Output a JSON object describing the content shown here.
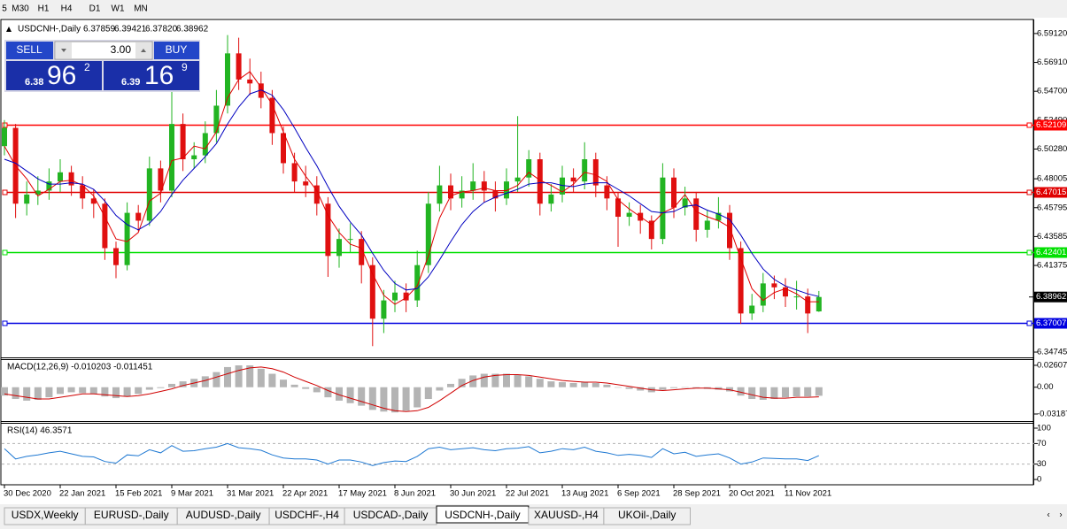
{
  "toolbar": [
    "5",
    "M30",
    "H1",
    "H4",
    "D1",
    "W1",
    "MN"
  ],
  "trade_panel": {
    "sell": "SELL",
    "buy": "BUY",
    "lots": "3.00",
    "sell_price": {
      "big": "6.38",
      "pips": "96",
      "point": "2"
    },
    "buy_price": {
      "big": "6.39",
      "pips": "16",
      "point": "9"
    }
  },
  "tabs": [
    {
      "label": "USDX,Weekly"
    },
    {
      "label": "EURUSD-,Daily"
    },
    {
      "label": "AUDUSD-,Daily"
    },
    {
      "label": "USDCHF-,H4"
    },
    {
      "label": "USDCAD-,Daily"
    },
    {
      "label": "USDCNH-,Daily",
      "active": true
    },
    {
      "label": "XAUUSD-,H4"
    },
    {
      "label": "UKOil-,Daily"
    }
  ],
  "chart_data": {
    "type": "candlestick",
    "title": "USDCNH-,Daily",
    "header_values": [
      "6.37859",
      "6.39421",
      "6.37820",
      "6.38962"
    ],
    "x_labels": [
      "30 Dec 2020",
      "22 Jan 2021",
      "15 Feb 2021",
      "9 Mar 2021",
      "31 Mar 2021",
      "22 Apr 2021",
      "17 May 2021",
      "8 Jun 2021",
      "30 Jun 2021",
      "22 Jul 2021",
      "13 Aug 2021",
      "6 Sep 2021",
      "28 Sep 2021",
      "20 Oct 2021",
      "11 Nov 2021"
    ],
    "up_color": "#22b422",
    "down_color": "#e01010",
    "ylim": [
      6.3434,
      6.6006
    ],
    "yticks": [
      {
        "value": 6.5912,
        "label": "6.59120"
      },
      {
        "value": 6.5691,
        "label": "6.56910"
      },
      {
        "value": 6.547,
        "label": "6.54700"
      },
      {
        "value": 6.5249,
        "label": "6.52490"
      },
      {
        "value": 6.5028,
        "label": "6.50280"
      },
      6.48005,
      6.45795,
      6.43585,
      6.41375,
      6.34745
    ],
    "levels": [
      {
        "value": 6.52109,
        "color": "#ff0000"
      },
      {
        "value": 6.47015,
        "color": "#e00000"
      },
      {
        "value": 6.42401,
        "color": "#00e000"
      },
      {
        "value": 6.37007,
        "color": "#0000e0"
      }
    ],
    "current_price": 6.38962,
    "candles": [
      [
        6.505,
        6.525,
        6.498,
        6.519
      ],
      [
        6.519,
        6.522,
        6.45,
        6.461
      ],
      [
        6.461,
        6.478,
        6.452,
        6.468
      ],
      [
        6.468,
        6.482,
        6.46,
        6.471
      ],
      [
        6.471,
        6.488,
        6.464,
        6.478
      ],
      [
        6.478,
        6.495,
        6.47,
        6.485
      ],
      [
        6.485,
        6.49,
        6.467,
        6.475
      ],
      [
        6.475,
        6.482,
        6.457,
        6.465
      ],
      [
        6.465,
        6.472,
        6.45,
        6.461
      ],
      [
        6.461,
        6.465,
        6.418,
        6.427
      ],
      [
        6.427,
        6.432,
        6.404,
        6.414
      ],
      [
        6.414,
        6.462,
        6.41,
        6.454
      ],
      [
        6.454,
        6.46,
        6.44,
        6.448
      ],
      [
        6.448,
        6.497,
        6.444,
        6.488
      ],
      [
        6.488,
        6.494,
        6.462,
        6.471
      ],
      [
        6.471,
        6.552,
        6.466,
        6.522
      ],
      [
        6.522,
        6.53,
        6.486,
        6.495
      ],
      [
        6.495,
        6.508,
        6.488,
        6.498
      ],
      [
        6.498,
        6.524,
        6.492,
        6.515
      ],
      [
        6.515,
        6.548,
        6.508,
        6.536
      ],
      [
        6.536,
        6.59,
        6.53,
        6.576
      ],
      [
        6.576,
        6.588,
        6.548,
        6.556
      ],
      [
        6.556,
        6.572,
        6.544,
        6.553
      ],
      [
        6.553,
        6.562,
        6.534,
        6.542
      ],
      [
        6.542,
        6.548,
        6.506,
        6.515
      ],
      [
        6.515,
        6.52,
        6.484,
        6.492
      ],
      [
        6.492,
        6.5,
        6.47,
        6.478
      ],
      [
        6.478,
        6.49,
        6.466,
        6.475
      ],
      [
        6.475,
        6.482,
        6.452,
        6.461
      ],
      [
        6.461,
        6.466,
        6.405,
        6.421
      ],
      [
        6.421,
        6.442,
        6.412,
        6.434
      ],
      [
        6.434,
        6.446,
        6.424,
        6.434
      ],
      [
        6.434,
        6.44,
        6.4,
        6.414
      ],
      [
        6.414,
        6.42,
        6.352,
        6.373
      ],
      [
        6.373,
        6.395,
        6.362,
        6.387
      ],
      [
        6.387,
        6.402,
        6.378,
        6.393
      ],
      [
        6.393,
        6.4,
        6.378,
        6.387
      ],
      [
        6.387,
        6.425,
        6.382,
        6.414
      ],
      [
        6.414,
        6.47,
        6.408,
        6.461
      ],
      [
        6.461,
        6.49,
        6.455,
        6.475
      ],
      [
        6.475,
        6.484,
        6.456,
        6.465
      ],
      [
        6.465,
        6.482,
        6.458,
        6.471
      ],
      [
        6.471,
        6.492,
        6.464,
        6.478
      ],
      [
        6.478,
        6.486,
        6.462,
        6.471
      ],
      [
        6.471,
        6.478,
        6.455,
        6.465
      ],
      [
        6.465,
        6.488,
        6.46,
        6.478
      ],
      [
        6.478,
        6.528,
        6.47,
        6.481
      ],
      [
        6.481,
        6.502,
        6.474,
        6.495
      ],
      [
        6.495,
        6.5,
        6.452,
        6.461
      ],
      [
        6.461,
        6.476,
        6.455,
        6.468
      ],
      [
        6.468,
        6.49,
        6.462,
        6.481
      ],
      [
        6.481,
        6.488,
        6.47,
        6.478
      ],
      [
        6.478,
        6.508,
        6.472,
        6.495
      ],
      [
        6.495,
        6.5,
        6.466,
        6.475
      ],
      [
        6.475,
        6.482,
        6.456,
        6.465
      ],
      [
        6.465,
        6.47,
        6.428,
        6.451
      ],
      [
        6.451,
        6.462,
        6.444,
        6.454
      ],
      [
        6.454,
        6.46,
        6.438,
        6.448
      ],
      [
        6.448,
        6.452,
        6.426,
        6.434
      ],
      [
        6.434,
        6.492,
        6.43,
        6.481
      ],
      [
        6.481,
        6.488,
        6.45,
        6.458
      ],
      [
        6.458,
        6.474,
        6.452,
        6.465
      ],
      [
        6.465,
        6.47,
        6.432,
        6.441
      ],
      [
        6.441,
        6.456,
        6.435,
        6.448
      ],
      [
        6.448,
        6.466,
        6.442,
        6.454
      ],
      [
        6.454,
        6.46,
        6.418,
        6.427
      ],
      [
        6.427,
        6.432,
        6.369,
        6.377
      ],
      [
        6.377,
        6.392,
        6.372,
        6.383
      ],
      [
        6.383,
        6.408,
        6.378,
        6.4
      ],
      [
        6.4,
        6.406,
        6.388,
        6.397
      ],
      [
        6.397,
        6.404,
        6.382,
        6.39
      ],
      [
        6.39,
        6.402,
        6.38,
        6.39
      ],
      [
        6.39,
        6.396,
        6.362,
        6.377
      ],
      [
        6.37859,
        6.39421,
        6.3782,
        6.38962
      ]
    ],
    "ma_lines": [
      {
        "color": "#e00000",
        "values": [
          6.505,
          6.49,
          6.48,
          6.467,
          6.472,
          6.478,
          6.479,
          6.475,
          6.467,
          6.451,
          6.434,
          6.432,
          6.439,
          6.463,
          6.469,
          6.494,
          6.496,
          6.505,
          6.503,
          6.516,
          6.542,
          6.556,
          6.562,
          6.55,
          6.537,
          6.516,
          6.495,
          6.482,
          6.471,
          6.452,
          6.439,
          6.43,
          6.427,
          6.407,
          6.391,
          6.384,
          6.389,
          6.398,
          6.421,
          6.45,
          6.467,
          6.47,
          6.471,
          6.473,
          6.471,
          6.471,
          6.475,
          6.485,
          6.479,
          6.475,
          6.47,
          6.476,
          6.485,
          6.483,
          6.478,
          6.464,
          6.457,
          6.451,
          6.445,
          6.454,
          6.458,
          6.468,
          6.455,
          6.451,
          6.448,
          6.443,
          6.419,
          6.396,
          6.387,
          6.393,
          6.396,
          6.392,
          6.386,
          6.386
        ]
      },
      {
        "color": "#0000c0",
        "values": [
          6.495,
          6.492,
          6.486,
          6.48,
          6.476,
          6.476,
          6.477,
          6.476,
          6.472,
          6.463,
          6.452,
          6.445,
          6.441,
          6.446,
          6.455,
          6.468,
          6.479,
          6.488,
          6.497,
          6.507,
          6.522,
          6.535,
          6.545,
          6.548,
          6.544,
          6.533,
          6.519,
          6.504,
          6.49,
          6.474,
          6.459,
          6.447,
          6.437,
          6.423,
          6.41,
          6.4,
          6.395,
          6.396,
          6.405,
          6.418,
          6.432,
          6.445,
          6.455,
          6.462,
          6.466,
          6.469,
          6.472,
          6.476,
          6.477,
          6.477,
          6.475,
          6.474,
          6.476,
          6.477,
          6.477,
          6.472,
          6.467,
          6.461,
          6.455,
          6.454,
          6.455,
          6.459,
          6.46,
          6.456,
          6.453,
          6.449,
          6.437,
          6.423,
          6.411,
          6.403,
          6.398,
          6.395,
          6.392,
          6.39
        ]
      }
    ],
    "macd": {
      "title": "MACD(12,26,9) -0.010203 -0.011451",
      "ylim": [
        -0.0403,
        0.0313
      ],
      "yticks": [
        0.02607,
        {
          "value": 0,
          "label": "0.00"
        },
        -0.03187
      ],
      "hist": {
        "color": "#b4b4b4",
        "values": [
          -0.01,
          -0.014,
          -0.016,
          -0.015,
          -0.012,
          -0.008,
          -0.006,
          -0.007,
          -0.008,
          -0.011,
          -0.013,
          -0.011,
          -0.008,
          -0.003,
          -0.001,
          0.004,
          0.007,
          0.01,
          0.013,
          0.018,
          0.024,
          0.026,
          0.026,
          0.022,
          0.016,
          0.009,
          0.003,
          -0.002,
          -0.006,
          -0.012,
          -0.016,
          -0.019,
          -0.022,
          -0.027,
          -0.029,
          -0.03,
          -0.028,
          -0.024,
          -0.014,
          -0.004,
          0.004,
          0.01,
          0.014,
          0.016,
          0.016,
          0.016,
          0.015,
          0.013,
          0.01,
          0.007,
          0.006,
          0.005,
          0.006,
          0.005,
          0.003,
          0,
          -0.002,
          -0.004,
          -0.006,
          -0.003,
          -0.001,
          0,
          -0.001,
          -0.002,
          -0.003,
          -0.005,
          -0.01,
          -0.014,
          -0.015,
          -0.014,
          -0.012,
          -0.011,
          -0.011,
          -0.010203
        ]
      },
      "signal": {
        "color": "#d00000",
        "values": [
          -0.008,
          -0.01,
          -0.012,
          -0.014,
          -0.014,
          -0.012,
          -0.01,
          -0.008,
          -0.008,
          -0.009,
          -0.01,
          -0.011,
          -0.01,
          -0.008,
          -0.005,
          -0.002,
          0.002,
          0.005,
          0.008,
          0.012,
          0.016,
          0.02,
          0.023,
          0.024,
          0.022,
          0.018,
          0.012,
          0.007,
          0.002,
          -0.004,
          -0.009,
          -0.013,
          -0.017,
          -0.021,
          -0.025,
          -0.028,
          -0.029,
          -0.028,
          -0.024,
          -0.016,
          -0.007,
          0.002,
          0.008,
          0.012,
          0.014,
          0.015,
          0.015,
          0.014,
          0.012,
          0.01,
          0.008,
          0.007,
          0.006,
          0.006,
          0.005,
          0.003,
          0.001,
          -0.001,
          -0.003,
          -0.004,
          -0.003,
          -0.002,
          -0.001,
          -0.001,
          -0.002,
          -0.003,
          -0.006,
          -0.009,
          -0.012,
          -0.013,
          -0.013,
          -0.012,
          -0.012,
          -0.011451
        ]
      }
    },
    "rsi": {
      "title": "RSI(14) 46.3571",
      "color": "#1e78d2",
      "ylim": [
        -10.3,
        106.9
      ],
      "yticks": [
        100,
        70,
        30,
        0
      ],
      "dashed_levels": [
        70,
        30
      ],
      "values": [
        60,
        40,
        45,
        48,
        52,
        55,
        50,
        45,
        44,
        35,
        32,
        48,
        46,
        58,
        52,
        66,
        55,
        56,
        60,
        63,
        70,
        62,
        60,
        57,
        48,
        42,
        40,
        40,
        38,
        30,
        38,
        38,
        34,
        27,
        33,
        36,
        35,
        45,
        60,
        63,
        58,
        60,
        62,
        58,
        56,
        60,
        61,
        64,
        52,
        55,
        60,
        58,
        63,
        55,
        52,
        47,
        49,
        47,
        43,
        60,
        50,
        53,
        45,
        48,
        50,
        42,
        30,
        34,
        42,
        41,
        40,
        40,
        37,
        46.3571
      ]
    }
  }
}
